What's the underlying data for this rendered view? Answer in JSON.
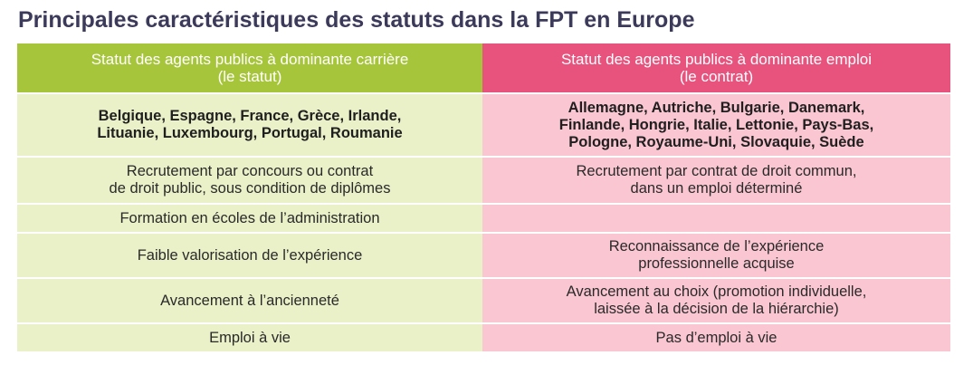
{
  "title": "Principales caractéristiques des statuts dans la FPT en Europe",
  "header": {
    "left": [
      "Statut des agents publics à dominante carrière",
      "(le statut)"
    ],
    "right": [
      "Statut des agents publics à dominante emploi",
      "(le contrat)"
    ]
  },
  "rows": [
    {
      "left": [
        "Belgique, Espagne, France, Grèce, Irlande,",
        "Lituanie, Luxembourg, Portugal, Roumanie"
      ],
      "right": [
        "Allemagne, Autriche, Bulgarie, Danemark,",
        "Finlande, Hongrie, Italie, Lettonie, Pays-Bas,",
        "Pologne, Royaume-Uni, Slovaquie, Suède"
      ]
    },
    {
      "left": [
        "Recrutement par concours ou contrat",
        "de droit public, sous condition de diplômes"
      ],
      "right": [
        "Recrutement par contrat de droit commun,",
        "dans un emploi déterminé"
      ]
    },
    {
      "left": [
        "Formation en écoles de l’administration"
      ],
      "right": []
    },
    {
      "left": [
        "Faible valorisation de l’expérience"
      ],
      "right": [
        "Reconnaissance de l’expérience",
        "professionnelle acquise"
      ]
    },
    {
      "left": [
        "Avancement à l’ancienneté"
      ],
      "right": [
        "Avancement au choix (promotion individuelle,",
        "laissée à la décision de la hiérarchie)"
      ]
    },
    {
      "left": [
        "Emploi à vie"
      ],
      "right": [
        "Pas d’emploi à vie"
      ]
    }
  ]
}
